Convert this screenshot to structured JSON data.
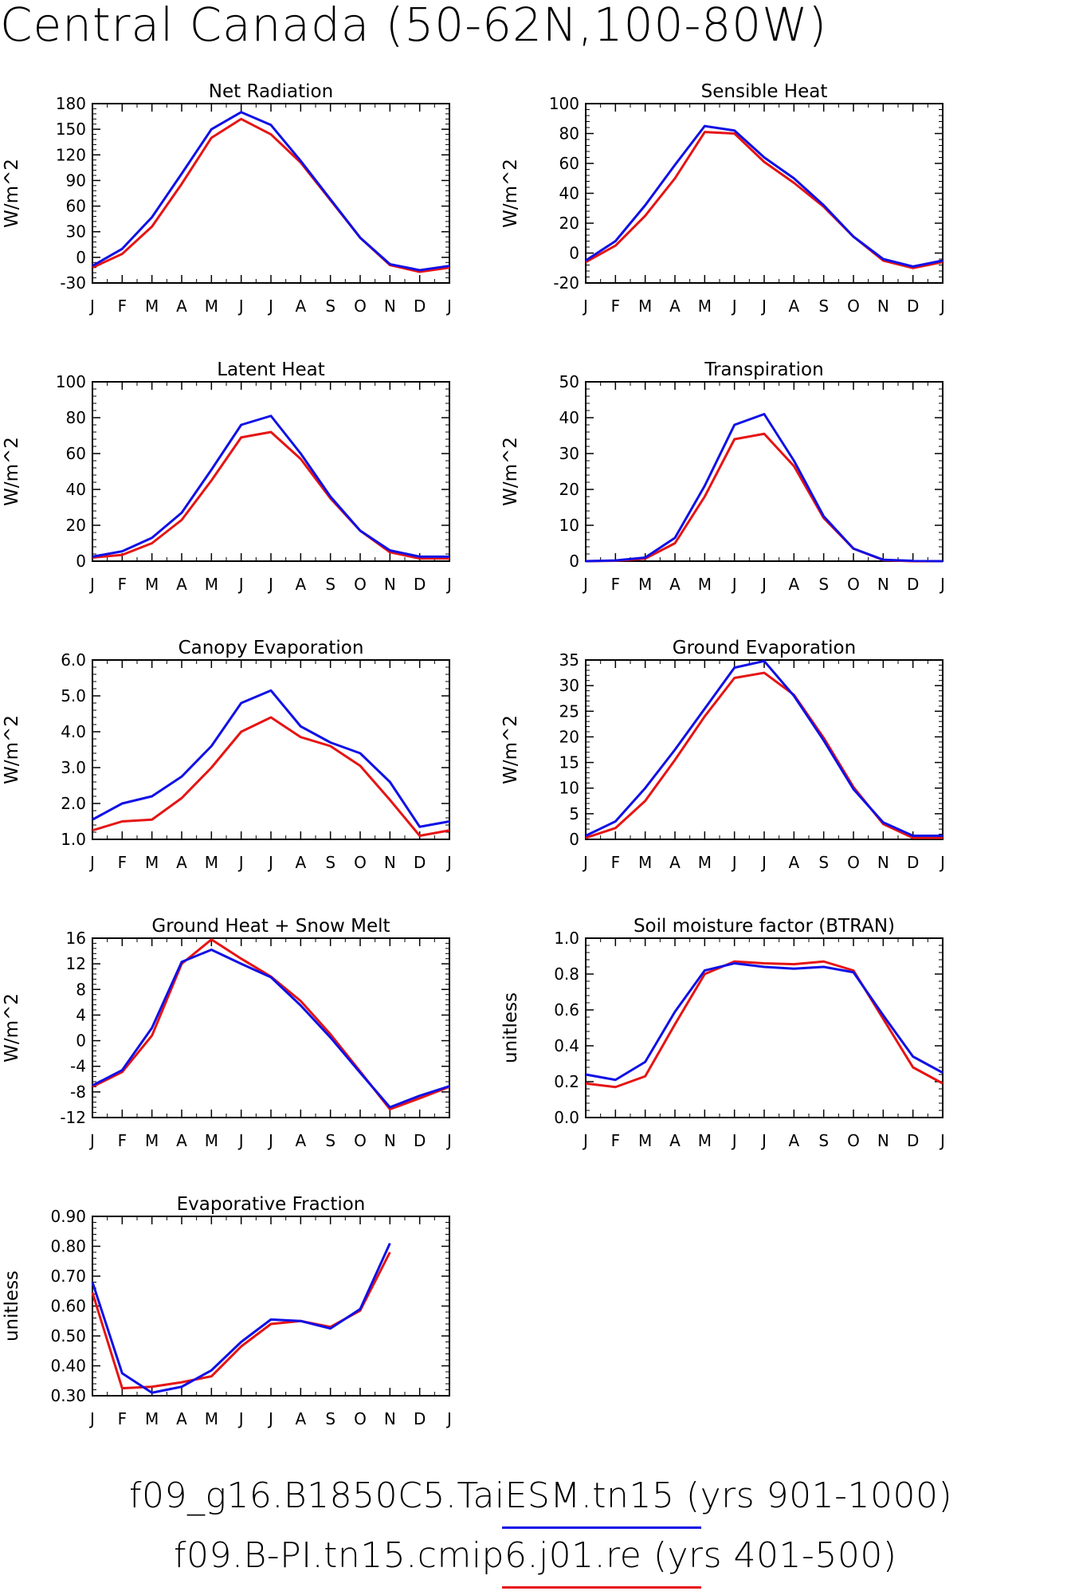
{
  "title": "Central Canada (50-62N,100-80W)",
  "months": [
    "J",
    "F",
    "M",
    "A",
    "M",
    "J",
    "J",
    "A",
    "S",
    "O",
    "N",
    "D",
    "J"
  ],
  "colors": {
    "series1": "#1010e6",
    "series2": "#e61414"
  },
  "legend": [
    {
      "label": "f09_g16.B1850C5.TaiESM.tn15 (yrs 901-1000)",
      "color": "#1010e6"
    },
    {
      "label": "f09.B-PI.tn15.cmip6.j01.re (yrs 401-500)",
      "color": "#e61414"
    }
  ],
  "chart_data": [
    {
      "type": "line",
      "title": "Net Radiation",
      "ylabel": "W/m^2",
      "ylim": [
        -30,
        180
      ],
      "yticks": [
        "-30",
        "0",
        "30",
        "60",
        "90",
        "120",
        "150",
        "180"
      ],
      "series": [
        {
          "name": "f09_g16.B1850C5.TaiESM.tn15 (yrs 901-1000)",
          "values": [
            -10,
            10,
            47,
            98,
            150,
            170,
            155,
            113,
            68,
            23,
            -8,
            -15,
            -10
          ]
        },
        {
          "name": "f09.B-PI.tn15.cmip6.j01.re (yrs 401-500)",
          "values": [
            -12,
            4,
            36,
            86,
            140,
            162,
            144,
            111,
            67,
            23,
            -9,
            -17,
            -12
          ]
        }
      ]
    },
    {
      "type": "line",
      "title": "Sensible Heat",
      "ylabel": "W/m^2",
      "ylim": [
        -20,
        100
      ],
      "yticks": [
        "-20",
        "0",
        "20",
        "40",
        "60",
        "80",
        "100"
      ],
      "series": [
        {
          "name": "f09_g16.B1850C5.TaiESM.tn15 (yrs 901-1000)",
          "values": [
            -5,
            8,
            32,
            59,
            85,
            82,
            64,
            50,
            32,
            11,
            -4,
            -9,
            -5
          ]
        },
        {
          "name": "f09.B-PI.tn15.cmip6.j01.re (yrs 401-500)",
          "values": [
            -6,
            5,
            25,
            50,
            81,
            80,
            61,
            47,
            31,
            11,
            -5,
            -10,
            -6
          ]
        }
      ]
    },
    {
      "type": "line",
      "title": "Latent Heat",
      "ylabel": "W/m^2",
      "ylim": [
        0,
        100
      ],
      "yticks": [
        "0",
        "20",
        "40",
        "60",
        "80",
        "100"
      ],
      "series": [
        {
          "name": "f09_g16.B1850C5.TaiESM.tn15 (yrs 901-1000)",
          "values": [
            2.5,
            5.5,
            13,
            27,
            51,
            76,
            81,
            60,
            36,
            17,
            6,
            2.5,
            2.5
          ]
        },
        {
          "name": "f09.B-PI.tn15.cmip6.j01.re (yrs 401-500)",
          "values": [
            2,
            3.5,
            10,
            23,
            45,
            69,
            72,
            57,
            35,
            17,
            5,
            1.5,
            1.5
          ]
        }
      ]
    },
    {
      "type": "line",
      "title": "Transpiration",
      "ylabel": "W/m^2",
      "ylim": [
        0,
        50
      ],
      "yticks": [
        "0",
        "10",
        "20",
        "30",
        "40",
        "50"
      ],
      "series": [
        {
          "name": "f09_g16.B1850C5.TaiESM.tn15 (yrs 901-1000)",
          "values": [
            0,
            0.2,
            1,
            6.5,
            21,
            38,
            41,
            28,
            12.5,
            3.5,
            0.4,
            0.1,
            0
          ]
        },
        {
          "name": "f09.B-PI.tn15.cmip6.j01.re (yrs 401-500)",
          "values": [
            0,
            0.1,
            0.7,
            5,
            18,
            34,
            35.5,
            26.5,
            12,
            3.5,
            0.3,
            0,
            0
          ]
        }
      ]
    },
    {
      "type": "line",
      "title": "Canopy Evaporation",
      "ylabel": "W/m^2",
      "ylim": [
        1.0,
        6.0
      ],
      "yticks": [
        "1.0",
        "2.0",
        "3.0",
        "4.0",
        "5.0",
        "6.0"
      ],
      "series": [
        {
          "name": "f09_g16.B1850C5.TaiESM.tn15 (yrs 901-1000)",
          "values": [
            1.55,
            2.0,
            2.2,
            2.75,
            3.6,
            4.8,
            5.15,
            4.15,
            3.7,
            3.4,
            2.6,
            1.35,
            1.5
          ]
        },
        {
          "name": "f09.B-PI.tn15.cmip6.j01.re (yrs 401-500)",
          "values": [
            1.25,
            1.5,
            1.55,
            2.15,
            3.0,
            4.0,
            4.4,
            3.85,
            3.6,
            3.05,
            2.1,
            1.1,
            1.25
          ]
        }
      ]
    },
    {
      "type": "line",
      "title": "Ground Evaporation",
      "ylabel": "W/m^2",
      "ylim": [
        0,
        35
      ],
      "yticks": [
        "0",
        "5",
        "10",
        "15",
        "20",
        "25",
        "30",
        "35"
      ],
      "series": [
        {
          "name": "f09_g16.B1850C5.TaiESM.tn15 (yrs 901-1000)",
          "values": [
            0.7,
            3.5,
            10,
            17.5,
            25.5,
            33.5,
            34.8,
            28,
            19.3,
            9.8,
            3.3,
            0.7,
            0.7
          ]
        },
        {
          "name": "f09.B-PI.tn15.cmip6.j01.re (yrs 401-500)",
          "values": [
            0.3,
            2.2,
            7.5,
            15.5,
            24,
            31.5,
            32.5,
            28.2,
            19.8,
            10.2,
            3,
            0.3,
            0.3
          ]
        }
      ]
    },
    {
      "type": "line",
      "title": "Ground Heat + Snow Melt",
      "ylabel": "W/m^2",
      "ylim": [
        -12,
        16
      ],
      "yticks": [
        "-12",
        "-8",
        "-4",
        "0",
        "4",
        "8",
        "12",
        "16"
      ],
      "series": [
        {
          "name": "f09_g16.B1850C5.TaiESM.tn15 (yrs 901-1000)",
          "values": [
            -7,
            -4.6,
            2,
            12.3,
            14.2,
            12,
            9.9,
            5.5,
            0.5,
            -5,
            -10.4,
            -8.6,
            -7.1
          ]
        },
        {
          "name": "f09.B-PI.tn15.cmip6.j01.re (yrs 401-500)",
          "values": [
            -7.2,
            -4.9,
            0.8,
            12,
            15.8,
            12.8,
            10,
            6.2,
            1,
            -4.8,
            -10.7,
            -9,
            -7.2
          ]
        }
      ]
    },
    {
      "type": "line",
      "title": "Soil moisture factor (BTRAN)",
      "ylabel": "unitless",
      "ylim": [
        0.0,
        1.0
      ],
      "yticks": [
        "0.0",
        "0.2",
        "0.4",
        "0.6",
        "0.8",
        "1.0"
      ],
      "series": [
        {
          "name": "f09_g16.B1850C5.TaiESM.tn15 (yrs 901-1000)",
          "values": [
            0.24,
            0.21,
            0.31,
            0.59,
            0.82,
            0.86,
            0.84,
            0.83,
            0.84,
            0.81,
            0.57,
            0.34,
            0.25
          ]
        },
        {
          "name": "f09.B-PI.tn15.cmip6.j01.re (yrs 401-500)",
          "values": [
            0.19,
            0.17,
            0.23,
            0.52,
            0.8,
            0.87,
            0.86,
            0.855,
            0.87,
            0.82,
            0.55,
            0.28,
            0.19
          ]
        }
      ]
    },
    {
      "type": "line",
      "title": "Evaporative Fraction",
      "ylabel": "unitless",
      "ylim": [
        0.3,
        0.9
      ],
      "yticks": [
        "0.30",
        "0.40",
        "0.50",
        "0.60",
        "0.70",
        "0.80",
        "0.90"
      ],
      "series": [
        {
          "name": "f09_g16.B1850C5.TaiESM.tn15 (yrs 901-1000)",
          "values": [
            0.68,
            0.375,
            0.31,
            0.33,
            0.385,
            0.48,
            0.555,
            0.55,
            0.525,
            0.59,
            0.81,
            null,
            null
          ]
        },
        {
          "name": "f09.B-PI.tn15.cmip6.j01.re (yrs 401-500)",
          "values": [
            0.645,
            0.325,
            0.33,
            0.345,
            0.365,
            0.465,
            0.54,
            0.55,
            0.53,
            0.585,
            0.78,
            null,
            null
          ]
        }
      ]
    }
  ]
}
